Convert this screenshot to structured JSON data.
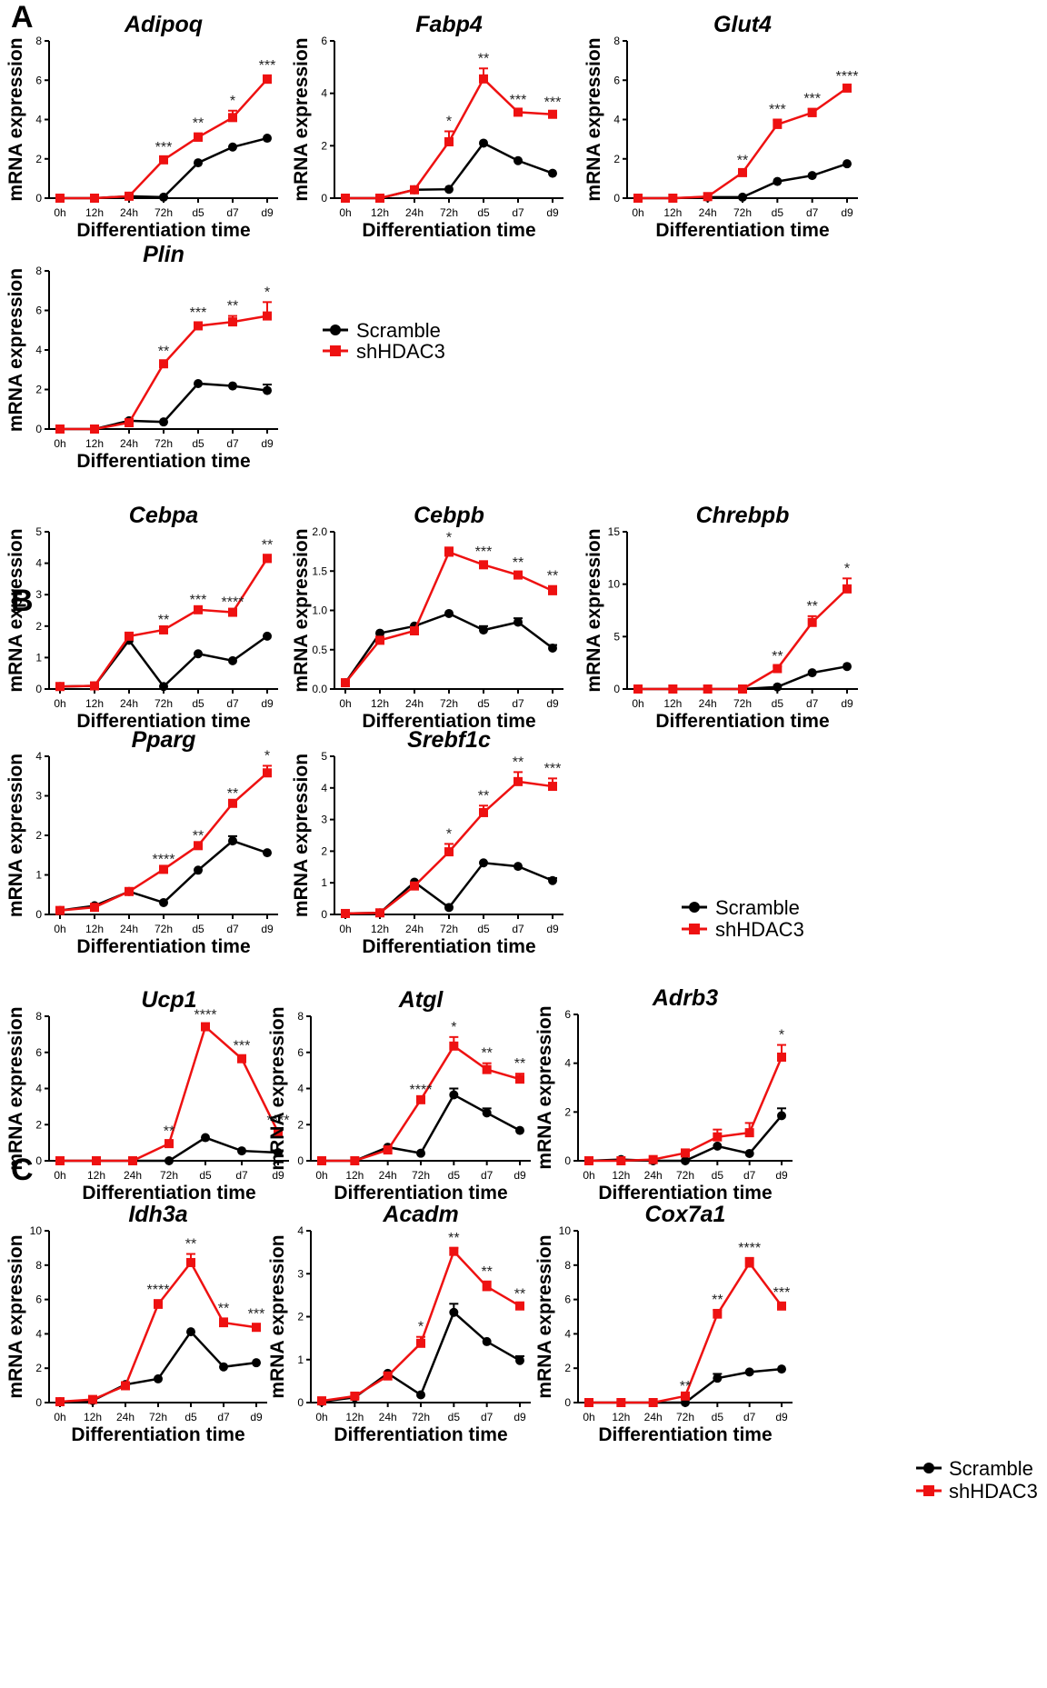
{
  "colors": {
    "scramble": "#000000",
    "shhdac3": "#ee1111",
    "axis": "#000000",
    "background": "#ffffff"
  },
  "legend": {
    "scramble": "Scramble",
    "shhdac3": "shHDAC3"
  },
  "panels": [
    "A",
    "B",
    "C"
  ],
  "chart_data": [
    {
      "type": "line",
      "panel": "A",
      "title": "Adipoq",
      "xlabel": "Differentiation time",
      "ylabel": "mRNA expression",
      "categories": [
        "0h",
        "12h",
        "24h",
        "72h",
        "d5",
        "d7",
        "d9"
      ],
      "ylim": [
        0,
        8
      ],
      "yticks": [
        0,
        2,
        4,
        6,
        8
      ],
      "series": [
        {
          "name": "Scramble",
          "values": [
            0,
            0,
            0.1,
            0.05,
            1.8,
            2.6,
            3.05
          ],
          "errors": [
            0,
            0,
            0,
            0,
            0,
            0,
            0
          ]
        },
        {
          "name": "shHDAC3",
          "values": [
            0,
            0,
            0.1,
            1.95,
            3.1,
            4.1,
            6.05
          ],
          "errors": [
            0,
            0,
            0,
            0.12,
            0.2,
            0.35,
            0.2
          ]
        }
      ],
      "significance": [
        "",
        "",
        "",
        "***",
        "**",
        "*",
        "***"
      ]
    },
    {
      "type": "line",
      "panel": "A",
      "title": "Fabp4",
      "xlabel": "Differentiation time",
      "ylabel": "mRNA expression",
      "categories": [
        "0h",
        "12h",
        "24h",
        "72h",
        "d5",
        "d7",
        "d9"
      ],
      "ylim": [
        0,
        6
      ],
      "yticks": [
        0,
        2,
        4,
        6
      ],
      "series": [
        {
          "name": "Scramble",
          "values": [
            0,
            0,
            0.32,
            0.34,
            2.1,
            1.43,
            0.95
          ],
          "errors": [
            0,
            0,
            0,
            0,
            0,
            0,
            0
          ]
        },
        {
          "name": "shHDAC3",
          "values": [
            0,
            0,
            0.32,
            2.15,
            4.55,
            3.28,
            3.2
          ],
          "errors": [
            0,
            0,
            0,
            0.4,
            0.4,
            0.08,
            0.08
          ]
        }
      ],
      "significance": [
        "",
        "",
        "",
        "*",
        "**",
        "***",
        "***"
      ]
    },
    {
      "type": "line",
      "panel": "A",
      "title": "Glut4",
      "xlabel": "Differentiation time",
      "ylabel": "mRNA expression",
      "categories": [
        "0h",
        "12h",
        "24h",
        "72h",
        "d5",
        "d7",
        "d9"
      ],
      "ylim": [
        0,
        8
      ],
      "yticks": [
        0,
        2,
        4,
        6,
        8
      ],
      "series": [
        {
          "name": "Scramble",
          "values": [
            0,
            0,
            0.05,
            0.05,
            0.85,
            1.15,
            1.75
          ],
          "errors": [
            0,
            0,
            0,
            0,
            0,
            0,
            0
          ]
        },
        {
          "name": "shHDAC3",
          "values": [
            0,
            0,
            0.08,
            1.3,
            3.75,
            4.35,
            5.6
          ],
          "errors": [
            0,
            0,
            0,
            0.12,
            0.25,
            0.2,
            0.08
          ]
        }
      ],
      "significance": [
        "",
        "",
        "",
        "**",
        "***",
        "***",
        "****"
      ]
    },
    {
      "type": "line",
      "panel": "A",
      "title": "Plin",
      "xlabel": "Differentiation time",
      "ylabel": "mRNA expression",
      "categories": [
        "0h",
        "12h",
        "24h",
        "72h",
        "d5",
        "d7",
        "d9"
      ],
      "ylim": [
        0,
        8
      ],
      "yticks": [
        0,
        2,
        4,
        6,
        8
      ],
      "series": [
        {
          "name": "Scramble",
          "values": [
            0,
            0,
            0.42,
            0.36,
            2.3,
            2.18,
            1.95
          ],
          "errors": [
            0,
            0,
            0,
            0,
            0,
            0,
            0.3
          ]
        },
        {
          "name": "shHDAC3",
          "values": [
            0,
            0,
            0.32,
            3.3,
            5.22,
            5.42,
            5.72
          ],
          "errors": [
            0,
            0,
            0,
            0.12,
            0.15,
            0.3,
            0.7
          ]
        }
      ],
      "significance": [
        "",
        "",
        "",
        "**",
        "***",
        "**",
        "*"
      ]
    },
    {
      "type": "line",
      "panel": "B",
      "title": "Cebpa",
      "xlabel": "Differentiation time",
      "ylabel": "mRNA expression",
      "categories": [
        "0h",
        "12h",
        "24h",
        "72h",
        "d5",
        "d7",
        "d9"
      ],
      "ylim": [
        0,
        5
      ],
      "yticks": [
        0,
        1,
        2,
        3,
        4,
        5
      ],
      "series": [
        {
          "name": "Scramble",
          "values": [
            0.08,
            0.1,
            1.55,
            0.08,
            1.12,
            0.9,
            1.68
          ],
          "errors": [
            0,
            0,
            0,
            0,
            0,
            0,
            0
          ]
        },
        {
          "name": "shHDAC3",
          "values": [
            0.08,
            0.1,
            1.68,
            1.88,
            2.52,
            2.44,
            4.15
          ],
          "errors": [
            0,
            0,
            0,
            0,
            0,
            0,
            0.12
          ]
        }
      ],
      "significance": [
        "",
        "",
        "",
        "**",
        "***",
        "****",
        "**"
      ]
    },
    {
      "type": "line",
      "panel": "B",
      "title": "Cebpb",
      "xlabel": "Differentiation time",
      "ylabel": "mRNA expression",
      "categories": [
        "0h",
        "12h",
        "24h",
        "72h",
        "d5",
        "d7",
        "d9"
      ],
      "ylim": [
        0,
        2
      ],
      "yticks": [
        "0.0",
        "0.5",
        "1.0",
        "1.5",
        "2.0"
      ],
      "series": [
        {
          "name": "Scramble",
          "values": [
            0.08,
            0.71,
            0.8,
            0.96,
            0.75,
            0.85,
            0.52
          ],
          "errors": [
            0,
            0,
            0,
            0,
            0.05,
            0.05,
            0.04
          ]
        },
        {
          "name": "shHDAC3",
          "values": [
            0.08,
            0.62,
            0.74,
            1.74,
            1.58,
            1.45,
            1.25
          ],
          "errors": [
            0,
            0,
            0,
            0.06,
            0.04,
            0.03,
            0.06
          ]
        }
      ],
      "significance": [
        "",
        "",
        "",
        "*",
        "***",
        "**",
        "**"
      ]
    },
    {
      "type": "line",
      "panel": "B",
      "title": "Chrebpb",
      "xlabel": "Differentiation time",
      "ylabel": "mRNA expression",
      "categories": [
        "0h",
        "12h",
        "24h",
        "72h",
        "d5",
        "d7",
        "d9"
      ],
      "ylim": [
        0,
        15
      ],
      "yticks": [
        0,
        5,
        10,
        15
      ],
      "series": [
        {
          "name": "Scramble",
          "values": [
            0,
            0,
            0,
            0,
            0.2,
            1.55,
            2.15
          ],
          "errors": [
            0,
            0,
            0,
            0,
            0,
            0,
            0
          ]
        },
        {
          "name": "shHDAC3",
          "values": [
            0,
            0,
            0,
            0,
            1.95,
            6.35,
            9.55
          ],
          "errors": [
            0,
            0,
            0,
            0,
            0.2,
            0.6,
            1.0
          ]
        }
      ],
      "significance": [
        "",
        "",
        "",
        "",
        "**",
        "**",
        "*"
      ]
    },
    {
      "type": "line",
      "panel": "B",
      "title": "Pparg",
      "xlabel": "Differentiation time",
      "ylabel": "mRNA expression",
      "categories": [
        "0h",
        "12h",
        "24h",
        "72h",
        "d5",
        "d7",
        "d9"
      ],
      "ylim": [
        0,
        4
      ],
      "yticks": [
        0,
        1,
        2,
        3,
        4
      ],
      "series": [
        {
          "name": "Scramble",
          "values": [
            0.1,
            0.22,
            0.58,
            0.3,
            1.12,
            1.86,
            1.56
          ],
          "errors": [
            0,
            0,
            0,
            0,
            0,
            0.12,
            0
          ]
        },
        {
          "name": "shHDAC3",
          "values": [
            0.1,
            0.18,
            0.58,
            1.14,
            1.74,
            2.81,
            3.58
          ],
          "errors": [
            0,
            0,
            0,
            0,
            0,
            0,
            0.18
          ]
        }
      ],
      "significance": [
        "",
        "",
        "",
        "****",
        "**",
        "**",
        "*"
      ]
    },
    {
      "type": "line",
      "panel": "B",
      "title": "Srebf1c",
      "xlabel": "Differentiation time",
      "ylabel": "mRNA expression",
      "categories": [
        "0h",
        "12h",
        "24h",
        "72h",
        "d5",
        "d7",
        "d9"
      ],
      "ylim": [
        0,
        5
      ],
      "yticks": [
        0,
        1,
        2,
        3,
        4,
        5
      ],
      "series": [
        {
          "name": "Scramble",
          "values": [
            0.03,
            0.05,
            1.02,
            0.22,
            1.63,
            1.52,
            1.07
          ],
          "errors": [
            0,
            0,
            0,
            0,
            0,
            0,
            0.08
          ]
        },
        {
          "name": "shHDAC3",
          "values": [
            0.03,
            0.05,
            0.9,
            1.98,
            3.22,
            4.2,
            4.05
          ],
          "errors": [
            0,
            0,
            0,
            0.25,
            0.22,
            0.3,
            0.25
          ]
        }
      ],
      "significance": [
        "",
        "",
        "",
        "*",
        "**",
        "**",
        "***"
      ]
    },
    {
      "type": "line",
      "panel": "C",
      "title": "Ucp1",
      "xlabel": "Differentiation time",
      "ylabel": "mRNA expression",
      "categories": [
        "0h",
        "12h",
        "24h",
        "72h",
        "d5",
        "d7",
        "d9"
      ],
      "ylim": [
        0,
        8
      ],
      "yticks": [
        0,
        2,
        4,
        6,
        8
      ],
      "series": [
        {
          "name": "Scramble",
          "values": [
            0,
            0,
            0,
            0,
            1.28,
            0.55,
            0.45
          ],
          "errors": [
            0,
            0,
            0,
            0,
            0,
            0,
            0
          ]
        },
        {
          "name": "shHDAC3",
          "values": [
            0,
            0,
            0,
            0.95,
            7.42,
            5.65,
            1.58
          ],
          "errors": [
            0,
            0,
            0,
            0.12,
            0.1,
            0.15,
            0.1
          ]
        }
      ],
      "significance": [
        "",
        "",
        "",
        "**",
        "****",
        "***",
        "****"
      ]
    },
    {
      "type": "line",
      "panel": "C",
      "title": "Atgl",
      "xlabel": "Differentiation time",
      "ylabel": "mRNA expression",
      "categories": [
        "0h",
        "12h",
        "24h",
        "72h",
        "d5",
        "d7",
        "d9"
      ],
      "ylim": [
        0,
        8
      ],
      "yticks": [
        0,
        2,
        4,
        6,
        8
      ],
      "series": [
        {
          "name": "Scramble",
          "values": [
            0,
            0,
            0.75,
            0.42,
            3.65,
            2.65,
            1.68
          ],
          "errors": [
            0,
            0,
            0,
            0,
            0.35,
            0.25,
            0
          ]
        },
        {
          "name": "shHDAC3",
          "values": [
            0,
            0,
            0.6,
            3.38,
            6.35,
            5.05,
            4.52
          ],
          "errors": [
            0,
            0,
            0,
            0,
            0.5,
            0.35,
            0.3
          ]
        }
      ],
      "significance": [
        "",
        "",
        "",
        "****",
        "*",
        "**",
        "**"
      ]
    },
    {
      "type": "line",
      "panel": "C",
      "title": "Adrb3",
      "xlabel": "Differentiation time",
      "ylabel": "mRNA expression",
      "categories": [
        "0h",
        "12h",
        "24h",
        "72h",
        "d5",
        "d7",
        "d9"
      ],
      "ylim": [
        0,
        6
      ],
      "yticks": [
        0,
        2,
        4,
        6
      ],
      "series": [
        {
          "name": "Scramble",
          "values": [
            0,
            0.05,
            0,
            0,
            0.6,
            0.3,
            1.85
          ],
          "errors": [
            0,
            0,
            0,
            0,
            0,
            0,
            0.3
          ]
        },
        {
          "name": "shHDAC3",
          "values": [
            0,
            0,
            0.05,
            0.32,
            0.98,
            1.15,
            4.25
          ],
          "errors": [
            0,
            0,
            0,
            0,
            0.3,
            0.4,
            0.5
          ]
        }
      ],
      "significance": [
        "",
        "",
        "",
        "",
        "",
        "",
        "*"
      ]
    },
    {
      "type": "line",
      "panel": "C",
      "title": "Idh3a",
      "xlabel": "Differentiation time",
      "ylabel": "mRNA expression",
      "categories": [
        "0h",
        "12h",
        "24h",
        "72h",
        "d5",
        "d7",
        "d9"
      ],
      "ylim": [
        0,
        10
      ],
      "yticks": [
        0,
        2,
        4,
        6,
        8,
        10
      ],
      "series": [
        {
          "name": "Scramble",
          "values": [
            0.05,
            0.12,
            1.05,
            1.38,
            4.12,
            2.08,
            2.32
          ],
          "errors": [
            0,
            0,
            0,
            0,
            0,
            0,
            0
          ]
        },
        {
          "name": "shHDAC3",
          "values": [
            0.05,
            0.18,
            0.98,
            5.72,
            8.15,
            4.65,
            4.38
          ],
          "errors": [
            0,
            0,
            0,
            0.25,
            0.5,
            0.25,
            0.2
          ]
        }
      ],
      "significance": [
        "",
        "",
        "",
        "****",
        "**",
        "**",
        "***"
      ]
    },
    {
      "type": "line",
      "panel": "C",
      "title": "Acadm",
      "xlabel": "Differentiation time",
      "ylabel": "mRNA expression",
      "categories": [
        "0h",
        "12h",
        "24h",
        "72h",
        "d5",
        "d7",
        "d9"
      ],
      "ylim": [
        0,
        4
      ],
      "yticks": [
        0,
        1,
        2,
        3,
        4
      ],
      "series": [
        {
          "name": "Scramble",
          "values": [
            0.02,
            0.12,
            0.68,
            0.18,
            2.1,
            1.42,
            0.98
          ],
          "errors": [
            0,
            0,
            0,
            0,
            0.2,
            0,
            0.1
          ]
        },
        {
          "name": "shHDAC3",
          "values": [
            0.04,
            0.15,
            0.62,
            1.38,
            3.52,
            2.7,
            2.25
          ],
          "errors": [
            0,
            0,
            0,
            0.15,
            0.08,
            0.12,
            0.05
          ]
        }
      ],
      "significance": [
        "",
        "",
        "",
        "*",
        "**",
        "**",
        "**"
      ]
    },
    {
      "type": "line",
      "panel": "C",
      "title": "Cox7a1",
      "xlabel": "Differentiation time",
      "ylabel": "mRNA expression",
      "categories": [
        "0h",
        "12h",
        "24h",
        "72h",
        "d5",
        "d7",
        "d9"
      ],
      "ylim": [
        0,
        10
      ],
      "yticks": [
        0,
        2,
        4,
        6,
        8,
        10
      ],
      "series": [
        {
          "name": "Scramble",
          "values": [
            0,
            0,
            0,
            0,
            1.42,
            1.78,
            1.95
          ],
          "errors": [
            0,
            0,
            0,
            0,
            0.25,
            0,
            0
          ]
        },
        {
          "name": "shHDAC3",
          "values": [
            0,
            0,
            0,
            0.38,
            5.15,
            8.12,
            5.62
          ],
          "errors": [
            0,
            0,
            0,
            0,
            0.25,
            0.3,
            0.2
          ]
        }
      ],
      "significance": [
        "",
        "",
        "",
        "**",
        "**",
        "****",
        "***"
      ]
    }
  ]
}
